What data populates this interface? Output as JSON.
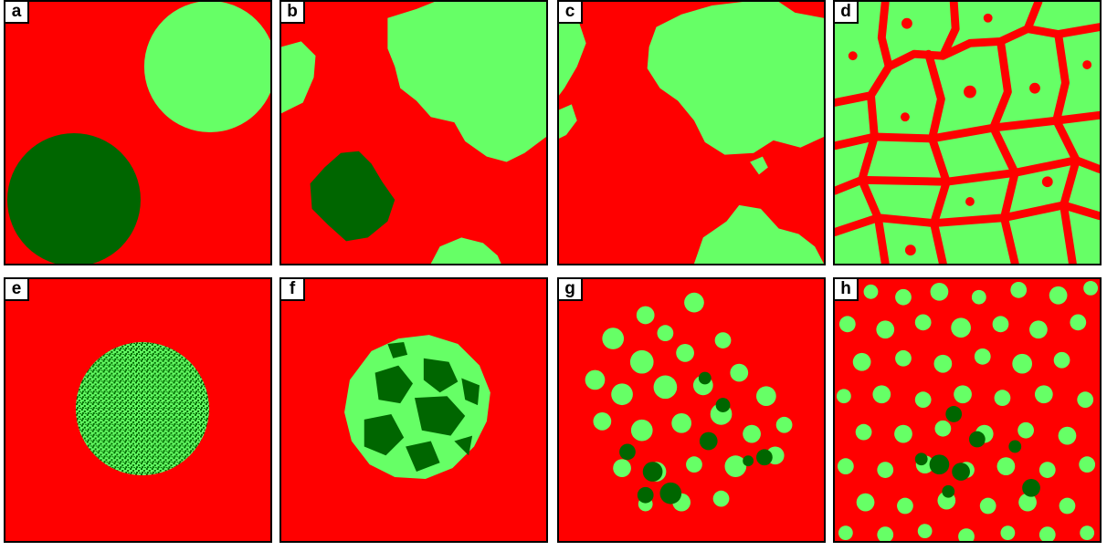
{
  "colors": {
    "background": "#ff0000",
    "light_green": "#66ff66",
    "dark_green": "#006600",
    "border": "#000000"
  },
  "panels": [
    {
      "label": "a"
    },
    {
      "label": "b"
    },
    {
      "label": "c"
    },
    {
      "label": "d"
    },
    {
      "label": "e"
    },
    {
      "label": "f"
    },
    {
      "label": "g"
    },
    {
      "label": "h"
    }
  ]
}
